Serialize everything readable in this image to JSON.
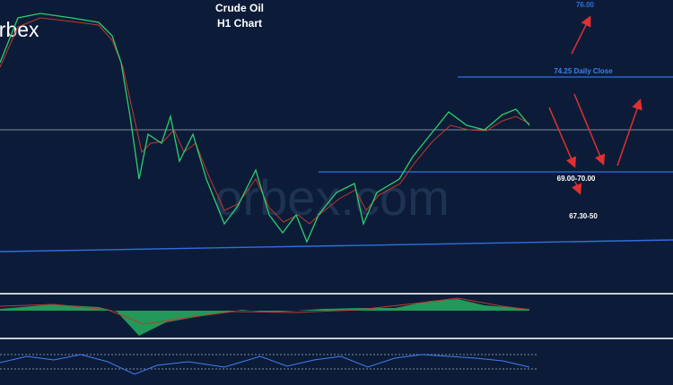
{
  "header": {
    "title": "Crude Oil",
    "subtitle": "H1 Chart"
  },
  "logo": "orbex",
  "annotations": {
    "target": "76.00",
    "daily_close": "74.25 Daily Close",
    "support_1": "69.00-70.00",
    "support_2": "67.30-50"
  }
}
